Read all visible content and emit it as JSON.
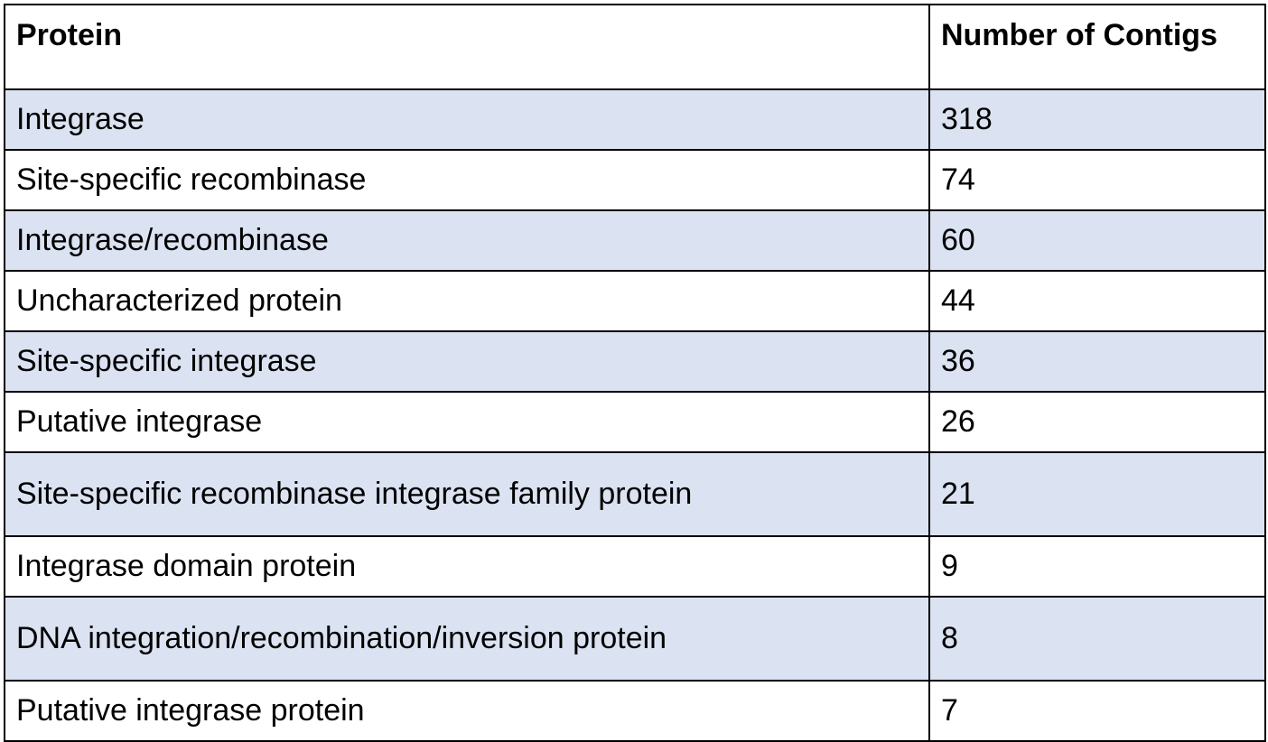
{
  "table": {
    "headers": {
      "protein": "Protein",
      "count": "Number of Contigs"
    },
    "rows": [
      {
        "protein": "Integrase",
        "count": "318"
      },
      {
        "protein": "Site-specific recombinase",
        "count": "74"
      },
      {
        "protein": "Integrase/recombinase",
        "count": "60"
      },
      {
        "protein": "Uncharacterized protein",
        "count": "44"
      },
      {
        "protein": "Site-specific integrase",
        "count": "36"
      },
      {
        "protein": "Putative integrase",
        "count": "26"
      },
      {
        "protein": "Site-specific recombinase integrase family protein",
        "count": "21"
      },
      {
        "protein": "Integrase domain protein",
        "count": "9"
      },
      {
        "protein": "DNA integration/recombination/inversion protein",
        "count": "8"
      },
      {
        "protein": "Putative integrase protein",
        "count": "7"
      }
    ],
    "colors": {
      "shaded_row": "#dbe2f1",
      "plain_row": "#ffffff",
      "border": "#000000"
    }
  }
}
